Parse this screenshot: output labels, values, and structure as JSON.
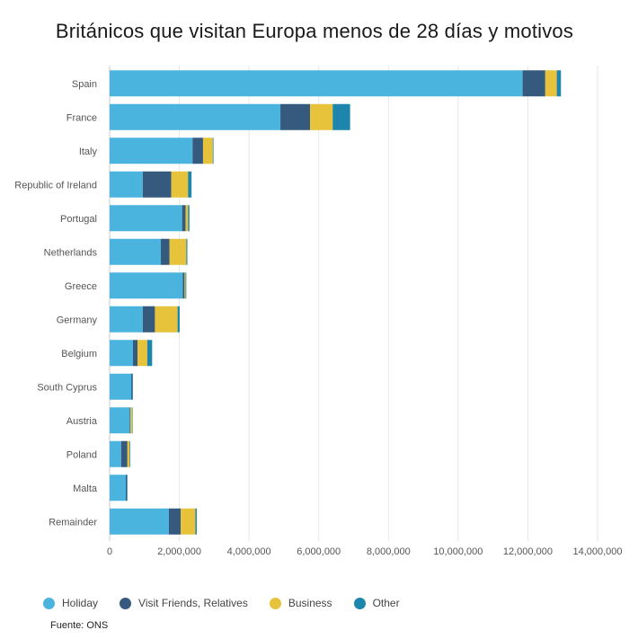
{
  "chart_data": {
    "type": "bar",
    "orientation": "horizontal",
    "stacked": true,
    "title": "Británicos que visitan Europa menos de 28 días y motivos",
    "source": "Fuente: ONS",
    "categories": [
      "Spain",
      "France",
      "Italy",
      "Republic of Ireland",
      "Portugal",
      "Netherlands",
      "Greece",
      "Germany",
      "Belgium",
      "South Cyprus",
      "Austria",
      "Poland",
      "Malta",
      "Remainder"
    ],
    "xlim": [
      0,
      14000000
    ],
    "xticks": [
      0,
      2000000,
      4000000,
      6000000,
      8000000,
      10000000,
      12000000,
      14000000
    ],
    "xtick_labels": [
      "0",
      "2,000,000",
      "4,000,000",
      "6,000,000",
      "8,000,000",
      "10,000,000",
      "12,000,000",
      "14,000,000"
    ],
    "grid": "vertical",
    "legend_position": "bottom-left",
    "series": [
      {
        "name": "Holiday",
        "color": "#4bb4de",
        "values": [
          11850000,
          4900000,
          2380000,
          950000,
          2080000,
          1470000,
          2100000,
          950000,
          670000,
          620000,
          580000,
          330000,
          460000,
          1700000
        ]
      },
      {
        "name": "Visit Friends, Relatives",
        "color": "#355a7e",
        "values": [
          650000,
          850000,
          300000,
          820000,
          100000,
          250000,
          50000,
          350000,
          130000,
          30000,
          20000,
          180000,
          30000,
          340000
        ]
      },
      {
        "name": "Business",
        "color": "#e6c33a",
        "values": [
          330000,
          650000,
          280000,
          480000,
          70000,
          480000,
          30000,
          650000,
          280000,
          0,
          50000,
          60000,
          0,
          420000
        ]
      },
      {
        "name": "Other",
        "color": "#1e85ac",
        "values": [
          120000,
          500000,
          20000,
          100000,
          40000,
          30000,
          20000,
          60000,
          140000,
          20000,
          10000,
          20000,
          20000,
          40000
        ]
      }
    ]
  }
}
